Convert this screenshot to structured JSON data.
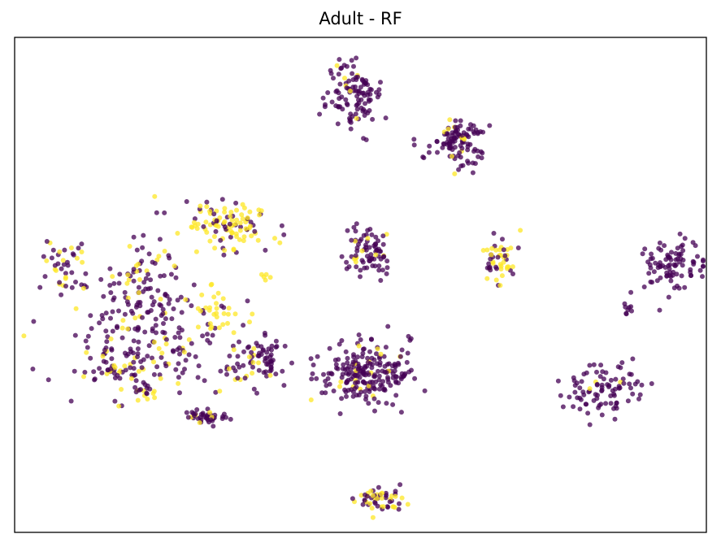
{
  "chart_data": {
    "type": "scatter",
    "title": "Adult - RF",
    "xlabel": "",
    "ylabel": "",
    "xlim": [
      -100,
      100
    ],
    "ylim": [
      -100,
      100
    ],
    "grid": false,
    "axis_ticks": false,
    "colors": {
      "class_0": "#440154",
      "class_1": "#fde725"
    },
    "alpha": 0.75,
    "clusters": [
      {
        "cx": -62,
        "cy": -2,
        "sx": 6,
        "sy": 13,
        "n": 120,
        "frac_yellow": 0.25
      },
      {
        "cx": -38,
        "cy": 25,
        "sx": 6,
        "sy": 5,
        "n": 110,
        "frac_yellow": 0.7
      },
      {
        "cx": -60,
        "cy": -28,
        "sx": 12,
        "sy": 9,
        "n": 140,
        "frac_yellow": 0.2
      },
      {
        "cx": -30,
        "cy": -30,
        "sx": 5,
        "sy": 5,
        "n": 80,
        "frac_yellow": 0.2
      },
      {
        "cx": -44,
        "cy": -10,
        "sx": 4,
        "sy": 5,
        "n": 30,
        "frac_yellow": 0.8
      },
      {
        "cx": -85,
        "cy": 7,
        "sx": 3,
        "sy": 7,
        "n": 45,
        "frac_yellow": 0.35
      },
      {
        "cx": -72,
        "cy": -35,
        "sx": 3,
        "sy": 3,
        "n": 30,
        "frac_yellow": 0.3
      },
      {
        "cx": -45,
        "cy": -53,
        "sx": 3.5,
        "sy": 1.5,
        "n": 40,
        "frac_yellow": 0.1
      },
      {
        "cx": -62,
        "cy": -43,
        "sx": 2,
        "sy": 1.5,
        "n": 12,
        "frac_yellow": 0.3
      },
      {
        "cx": -27,
        "cy": 3,
        "sx": 1,
        "sy": 1,
        "n": 5,
        "frac_yellow": 1.0
      },
      {
        "cx": -2,
        "cy": 77,
        "sx": 4,
        "sy": 7,
        "n": 110,
        "frac_yellow": 0.08
      },
      {
        "cx": 28,
        "cy": 58,
        "sx": 4.5,
        "sy": 5,
        "n": 110,
        "frac_yellow": 0.1
      },
      {
        "cx": 2,
        "cy": 14,
        "sx": 3.5,
        "sy": 5,
        "n": 80,
        "frac_yellow": 0.15
      },
      {
        "cx": 40,
        "cy": 10,
        "sx": 2.5,
        "sy": 5,
        "n": 50,
        "frac_yellow": 0.45
      },
      {
        "cx": 2,
        "cy": -36,
        "sx": 7,
        "sy": 6,
        "n": 220,
        "frac_yellow": 0.1
      },
      {
        "cx": 90,
        "cy": 8,
        "sx": 4,
        "sy": 6,
        "n": 90,
        "frac_yellow": 0.0
      },
      {
        "cx": 77,
        "cy": -10,
        "sx": 1,
        "sy": 1.5,
        "n": 8,
        "frac_yellow": 0.0
      },
      {
        "cx": 70,
        "cy": -42,
        "sx": 6,
        "sy": 5,
        "n": 90,
        "frac_yellow": 0.02
      },
      {
        "cx": 5,
        "cy": -87,
        "sx": 3.5,
        "sy": 2.5,
        "n": 55,
        "frac_yellow": 0.45
      }
    ]
  }
}
